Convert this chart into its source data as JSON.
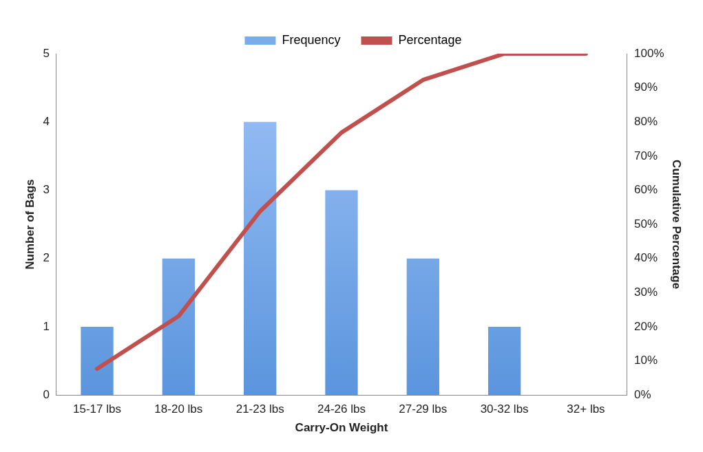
{
  "chart_data": {
    "type": "bar",
    "xlabel": "Carry-On Weight",
    "ylabel": "Number of Bags",
    "y2label": "Cumulative Percentage",
    "categories": [
      "15-17 lbs",
      "18-20 lbs",
      "21-23 lbs",
      "24-26 lbs",
      "27-29 lbs",
      "30-32 lbs",
      "32+ lbs"
    ],
    "series": [
      {
        "name": "Frequency",
        "color": "#5b95dd",
        "values": [
          1,
          2,
          4,
          3,
          2,
          1,
          0
        ]
      },
      {
        "name": "Percentage",
        "type": "line",
        "axis": "y2",
        "color": "#c0504d",
        "values": [
          7.7,
          23.1,
          53.8,
          76.9,
          92.3,
          100,
          100
        ]
      }
    ],
    "ylim": [
      0,
      5
    ],
    "yticks": [
      0,
      1,
      2,
      3,
      4,
      5
    ],
    "y2lim": [
      0,
      100
    ],
    "y2ticks": [
      {
        "value": 0,
        "label": "0%"
      },
      {
        "value": 10,
        "label": "10%"
      },
      {
        "value": 20,
        "label": "20%"
      },
      {
        "value": 30,
        "label": "30%"
      },
      {
        "value": 40,
        "label": "40%"
      },
      {
        "value": 50,
        "label": "50%"
      },
      {
        "value": 60,
        "label": "60%"
      },
      {
        "value": 70,
        "label": "70%"
      },
      {
        "value": 80,
        "label": "80%"
      },
      {
        "value": 90,
        "label": "90%"
      },
      {
        "value": 100,
        "label": "100%"
      }
    ],
    "grid": false,
    "legend": "top",
    "marker": "none",
    "line_style": "solid"
  }
}
